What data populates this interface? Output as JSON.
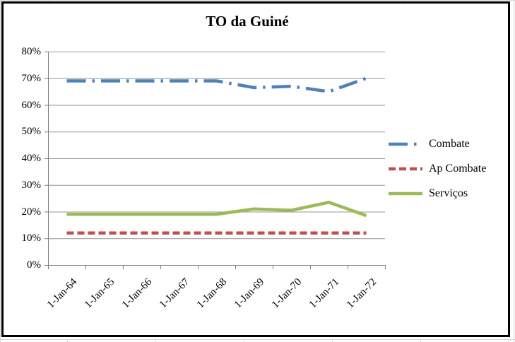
{
  "chart": {
    "border_color": "#000000",
    "background": "#ffffff",
    "axis_color": "#808080",
    "gridline_color": "#969696"
  },
  "chart_data": {
    "type": "line",
    "title": "TO da Guiné",
    "categories": [
      "1-Jan-64",
      "1-Jan-65",
      "1-Jan-66",
      "1-Jan-67",
      "1-Jan-68",
      "1-Jan-69",
      "1-Jan-70",
      "1-Jan-71",
      "1-Jan-72"
    ],
    "series": [
      {
        "name": "Combate",
        "color": "#4F81BD",
        "dash": "dash-dot",
        "values": [
          69,
          69,
          69,
          69,
          69,
          66.5,
          67,
          65,
          70
        ]
      },
      {
        "name": "Ap Combate",
        "color": "#C0504D",
        "dash": "dash",
        "values": [
          12,
          12,
          12,
          12,
          12,
          12,
          12,
          12,
          12
        ]
      },
      {
        "name": "Serviços",
        "color": "#9BBB59",
        "dash": "solid",
        "values": [
          19,
          19,
          19,
          19,
          19,
          21,
          20.5,
          23.5,
          18.5
        ]
      }
    ],
    "ylim": [
      0,
      80
    ],
    "ytick_step": 10,
    "ytick_labels": [
      "0%",
      "10%",
      "20%",
      "30%",
      "40%",
      "50%",
      "60%",
      "70%",
      "80%"
    ],
    "grid": true,
    "legend_position": "right"
  }
}
